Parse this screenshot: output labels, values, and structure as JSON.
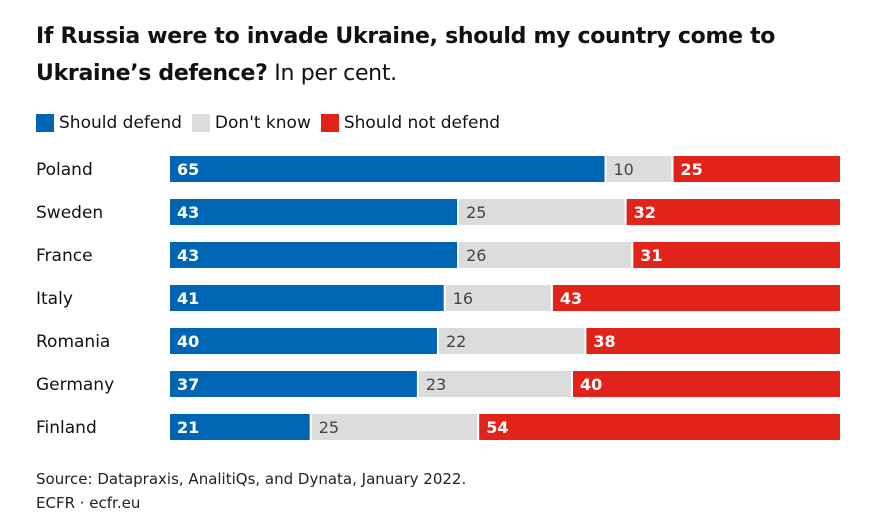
{
  "chart_data": {
    "type": "bar",
    "orientation": "horizontal",
    "stacked": true,
    "title": "If Russia were to invade Ukraine, should my country come to Ukraine’s defence?",
    "subtitle": "In per cent.",
    "categories": [
      "Poland",
      "Sweden",
      "France",
      "Italy",
      "Romania",
      "Germany",
      "Finland"
    ],
    "series": [
      {
        "name": "Should defend",
        "color": "#0066b3",
        "values": [
          65,
          43,
          43,
          41,
          40,
          37,
          21
        ]
      },
      {
        "name": "Don't know",
        "color": "#dcdcdc",
        "values": [
          10,
          25,
          26,
          16,
          22,
          23,
          25
        ]
      },
      {
        "name": "Should not defend",
        "color": "#e2231a",
        "values": [
          25,
          32,
          31,
          43,
          38,
          40,
          54
        ]
      }
    ],
    "xlim": [
      0,
      100
    ],
    "grid": false,
    "legend_position": "top-left"
  },
  "footer": {
    "source": "Source: Datapraxis, AnalitiQs, and Dynata, January 2022.",
    "credit": "ECFR · ecfr.eu"
  }
}
